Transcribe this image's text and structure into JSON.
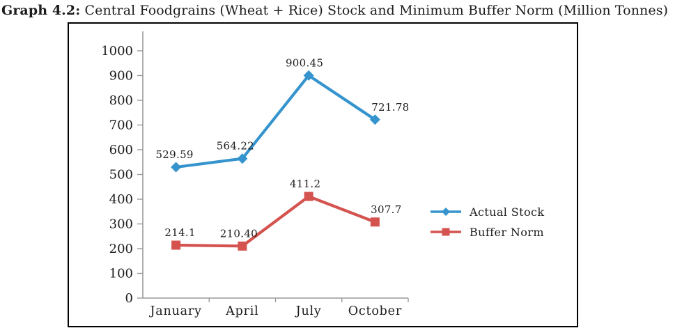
{
  "title": {
    "prefix": "Graph 4.2:",
    "text": " Central Foodgrains (Wheat + Rice) Stock and Minimum Buffer Norm (Million Tonnes)"
  },
  "chart_data": {
    "type": "line",
    "categories": [
      "January",
      "April",
      "July",
      "October"
    ],
    "series": [
      {
        "name": "Actual Stock",
        "values": [
          529.59,
          564.22,
          900.45,
          721.78
        ],
        "labels": [
          "529.59",
          "564.22",
          "900.45",
          "721.78"
        ],
        "color": "#3594CE",
        "marker": "diamond"
      },
      {
        "name": "Buffer Norm",
        "values": [
          214.1,
          210.4,
          411.2,
          307.7
        ],
        "labels": [
          "214.1",
          "210.40",
          "411.2",
          "307.7"
        ],
        "color": "#D4534F",
        "marker": "square"
      }
    ],
    "xlabel": "",
    "ylabel": "",
    "ylim": [
      0,
      1000
    ],
    "yticks": [
      0,
      100,
      200,
      300,
      400,
      500,
      600,
      700,
      800,
      900,
      1000
    ],
    "grid": false,
    "legend_position": "right-middle",
    "axis_color": "#9a9a9a",
    "text_color": "#1c1c1c"
  }
}
